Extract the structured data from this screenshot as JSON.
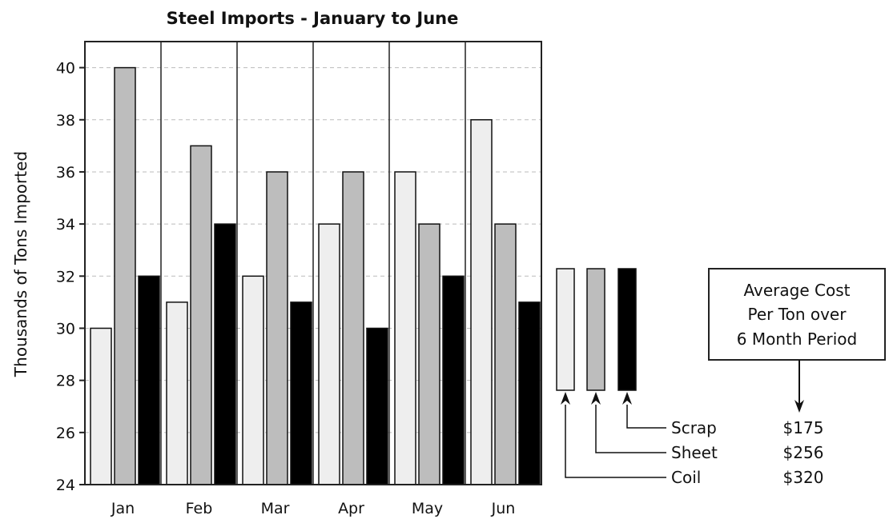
{
  "chart_data": {
    "type": "bar",
    "title": "Steel Imports - January to June",
    "xlabel": "",
    "ylabel": "Thousands of Tons Imported",
    "categories": [
      "Jan",
      "Feb",
      "Mar",
      "Apr",
      "May",
      "Jun"
    ],
    "ylim": [
      24,
      41
    ],
    "y_ticks": [
      24,
      26,
      28,
      30,
      32,
      34,
      36,
      38,
      40
    ],
    "grid": "horizontal dashed",
    "series": [
      {
        "name": "Coil",
        "color": "#eeeeee",
        "values": [
          30,
          31,
          32,
          34,
          36,
          38
        ]
      },
      {
        "name": "Sheet",
        "color": "#bdbdbd",
        "values": [
          40,
          37,
          36,
          36,
          34,
          34
        ]
      },
      {
        "name": "Scrap",
        "color": "#000000",
        "values": [
          32,
          34,
          31,
          30,
          32,
          31
        ]
      }
    ],
    "legend": {
      "placement": "right",
      "entries": [
        {
          "label": "Scrap",
          "cost": "$175"
        },
        {
          "label": "Sheet",
          "cost": "$256"
        },
        {
          "label": "Coil",
          "cost": "$320"
        }
      ]
    },
    "annotation": {
      "lines": [
        "Average Cost",
        "Per Ton over",
        "6 Month Period"
      ]
    }
  }
}
